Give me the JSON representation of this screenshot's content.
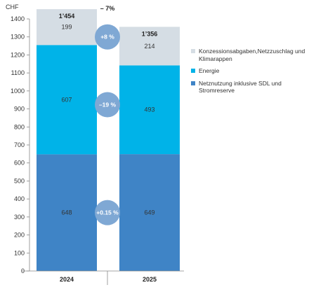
{
  "chart_data": {
    "type": "bar",
    "stacked": true,
    "categories": [
      "2024",
      "2025"
    ],
    "series": [
      {
        "name": "Netznutzung inklusive SDL und Stromreserve",
        "values": [
          648,
          649
        ],
        "color": "#3f84c6"
      },
      {
        "name": "Energie",
        "values": [
          607,
          493
        ],
        "color": "#00b3e8"
      },
      {
        "name": "Konzessionsabgaben,Netzzuschlag und Klimarappen",
        "values": [
          199,
          214
        ],
        "color": "#d5dde4"
      }
    ],
    "segment_labels": [
      [
        "648",
        "607",
        "199"
      ],
      [
        "649",
        "493",
        "214"
      ]
    ],
    "totals": [
      "1’454",
      "1’356"
    ],
    "total_change": "– 7%",
    "changes": [
      "+0.15 %",
      "–19 %",
      "+8 %"
    ],
    "change_bubble_color": "#7fa8d4",
    "ylabel": "CHF",
    "ylim": [
      0,
      1400
    ],
    "yticks": [
      0,
      100,
      200,
      300,
      400,
      500,
      600,
      700,
      800,
      900,
      1000,
      1100,
      1200,
      1300,
      1400
    ],
    "legend_position": "right",
    "grid": false
  },
  "legend": {
    "items": [
      {
        "label": "Konzessionsabgaben,Netzzuschlag und Klimarappen",
        "color": "#d5dde4"
      },
      {
        "label": "Energie",
        "color": "#00b3e8"
      },
      {
        "label": "Netznutzung inklusive SDL und Stromreserve",
        "color": "#3f84c6"
      }
    ]
  }
}
